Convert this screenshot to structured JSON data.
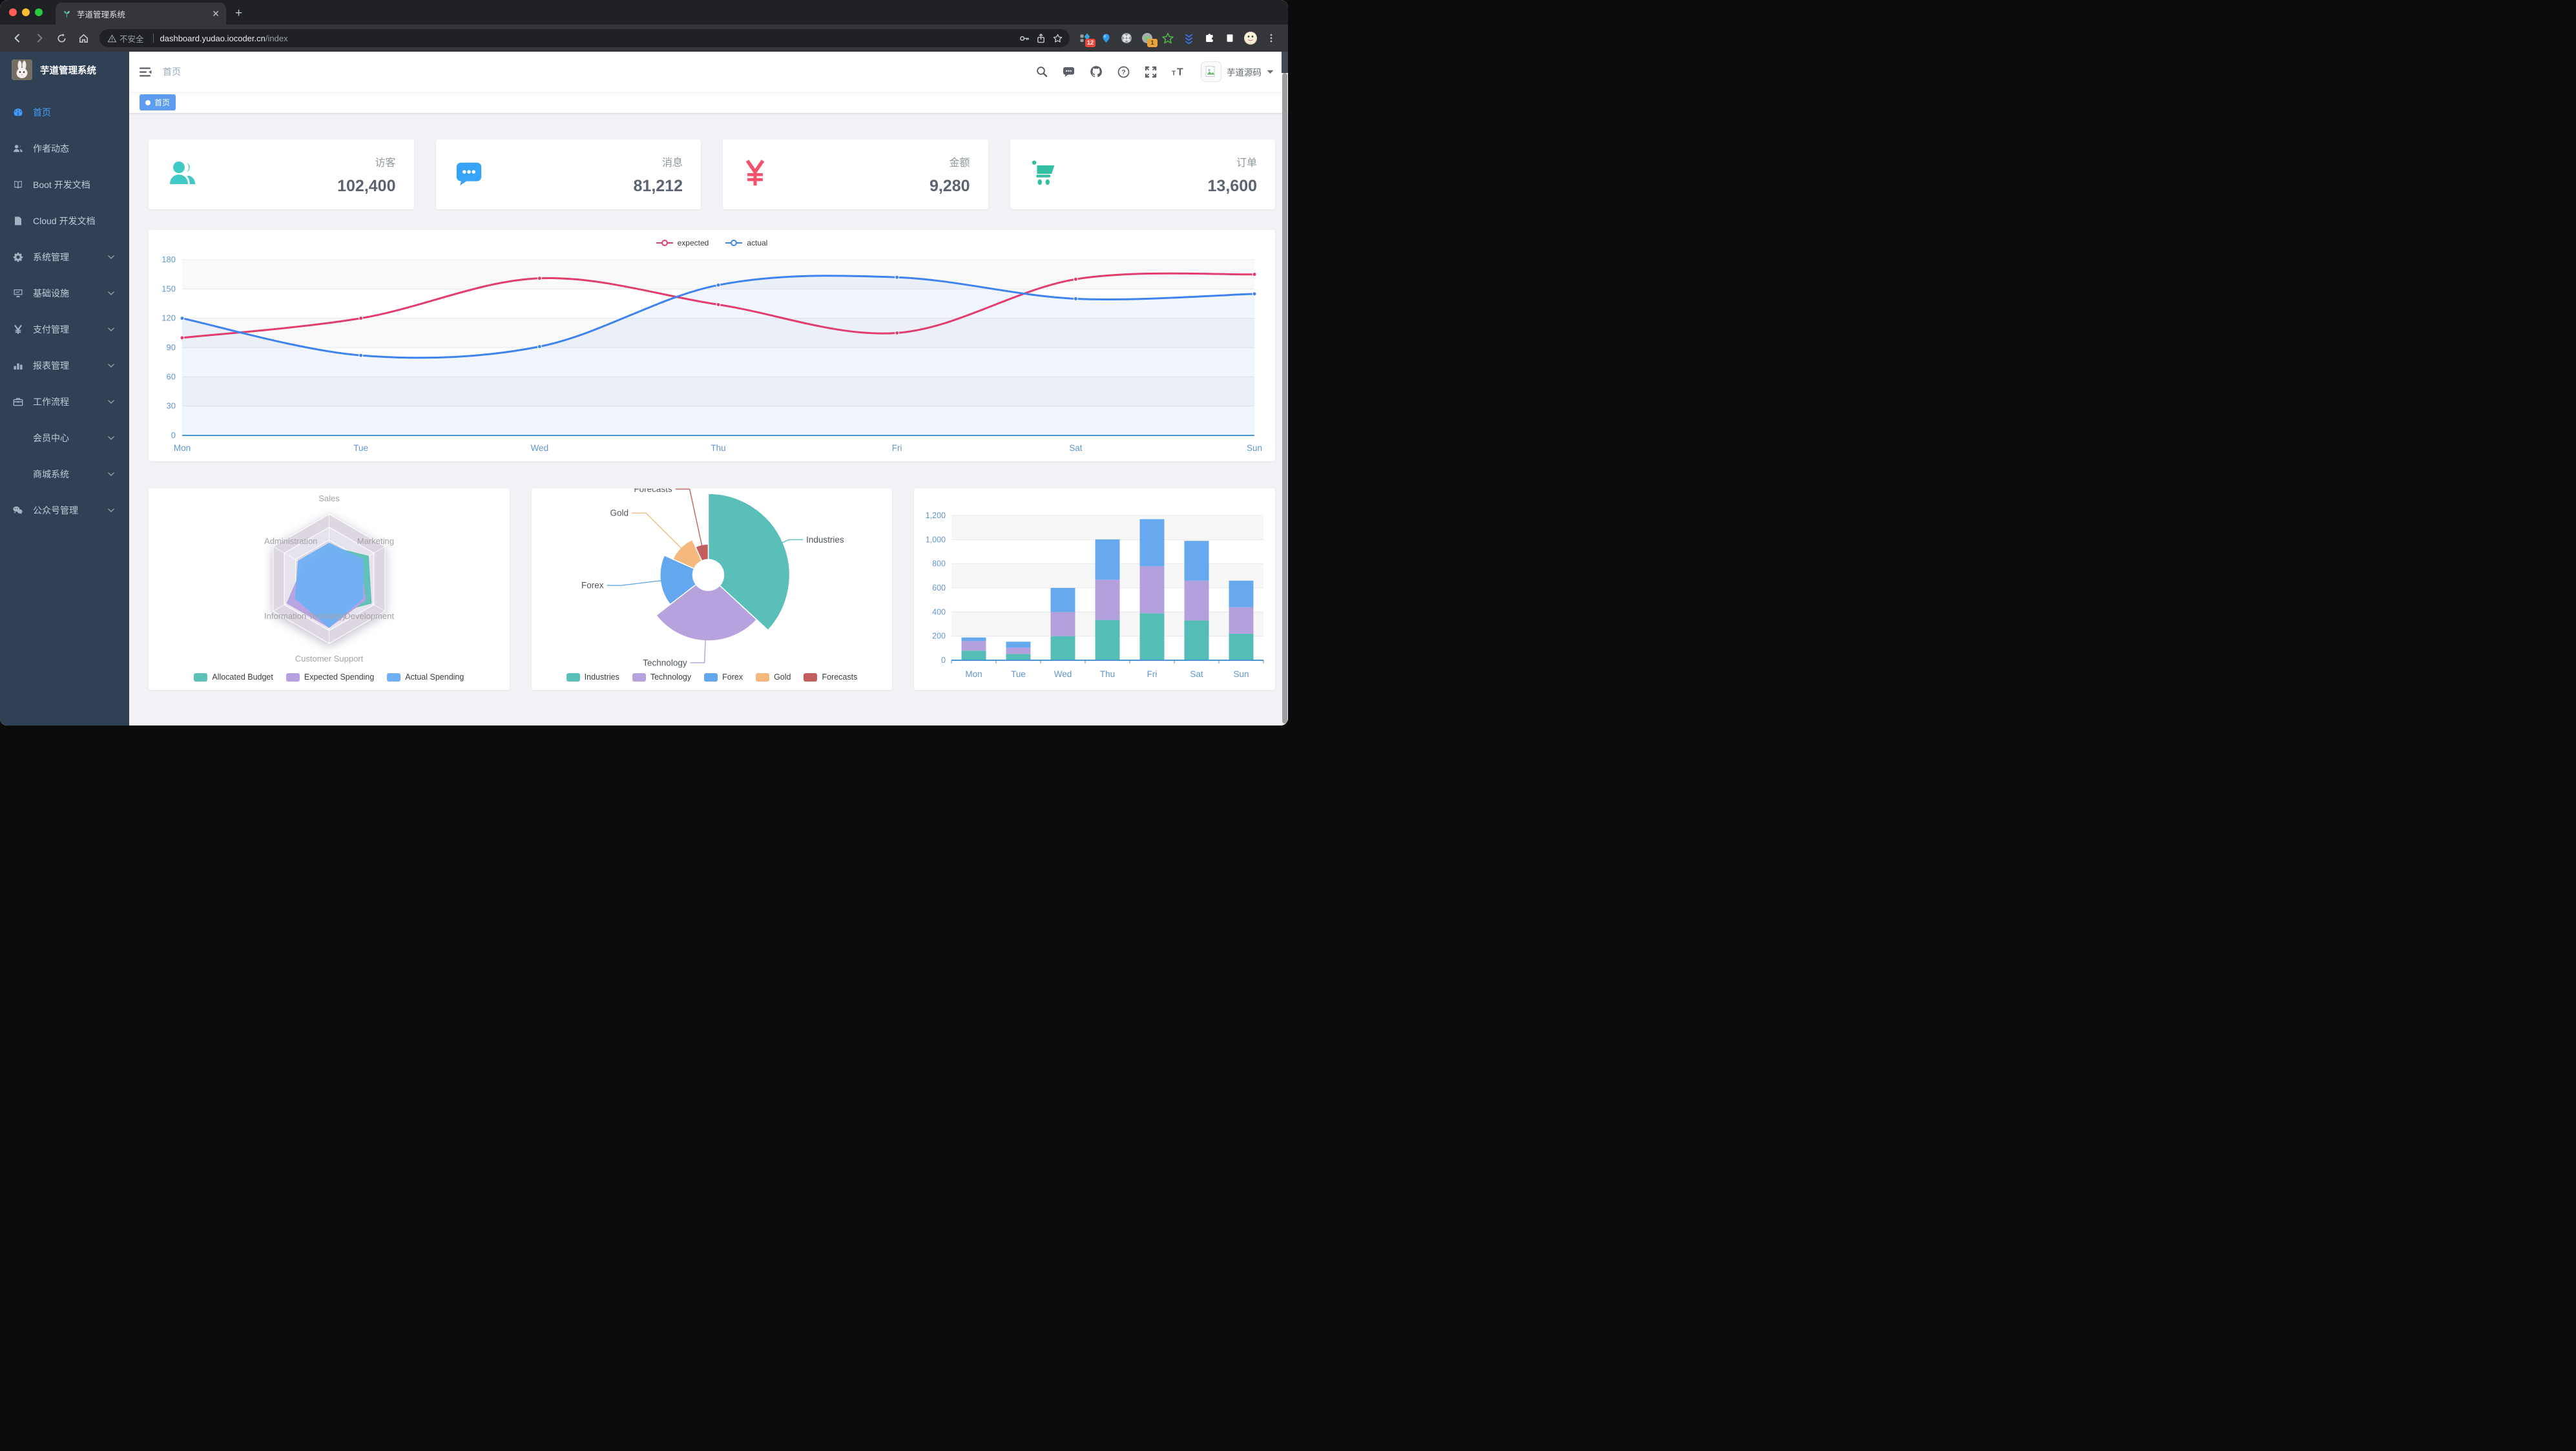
{
  "browser": {
    "tab_title": "芋道管理系统",
    "security_label": "不安全",
    "url_host": "dashboard.yudao.iocoder.cn",
    "url_path": "/index",
    "ext_badges": [
      "12",
      "1"
    ]
  },
  "sidebar": {
    "logo_title": "芋道管理系统",
    "items": [
      {
        "label": "首页",
        "icon": "dashboard-icon",
        "active": true,
        "arrow": false
      },
      {
        "label": "作者动态",
        "icon": "people-icon",
        "active": false,
        "arrow": false
      },
      {
        "label": "Boot 开发文档",
        "icon": "book-icon",
        "active": false,
        "arrow": false
      },
      {
        "label": "Cloud 开发文档",
        "icon": "document-icon",
        "active": false,
        "arrow": false
      },
      {
        "label": "系统管理",
        "icon": "gear-icon",
        "active": false,
        "arrow": true
      },
      {
        "label": "基础设施",
        "icon": "monitor-icon",
        "active": false,
        "arrow": true
      },
      {
        "label": "支付管理",
        "icon": "yen-icon",
        "active": false,
        "arrow": true
      },
      {
        "label": "报表管理",
        "icon": "chart-bar-icon",
        "active": false,
        "arrow": true
      },
      {
        "label": "工作流程",
        "icon": "briefcase-icon",
        "active": false,
        "arrow": true
      },
      {
        "label": "会员中心",
        "icon": null,
        "active": false,
        "arrow": true
      },
      {
        "label": "商城系统",
        "icon": null,
        "active": false,
        "arrow": true
      },
      {
        "label": "公众号管理",
        "icon": "wechat-icon",
        "active": false,
        "arrow": true
      }
    ]
  },
  "navbar": {
    "breadcrumb": "首页",
    "user_name": "芋道源码"
  },
  "tags_view": {
    "active_tag": "首页"
  },
  "stats": [
    {
      "label": "访客",
      "value": "102,400",
      "icon": "peoples-icon",
      "color": "#40c9c6"
    },
    {
      "label": "消息",
      "value": "81,212",
      "icon": "message-icon",
      "color": "#36a3f7"
    },
    {
      "label": "金额",
      "value": "9,280",
      "icon": "money-icon",
      "color": "#f4516c"
    },
    {
      "label": "订单",
      "value": "13,600",
      "icon": "cart-icon",
      "color": "#34bfa3"
    }
  ],
  "chart_data": [
    {
      "id": "weekly-line",
      "type": "line",
      "x": [
        "Mon",
        "Tue",
        "Wed",
        "Thu",
        "Fri",
        "Sat",
        "Sun"
      ],
      "series": [
        {
          "name": "expected",
          "color": "#e23d6d",
          "values": [
            100,
            120,
            161,
            134,
            105,
            160,
            165
          ],
          "area": false
        },
        {
          "name": "actual",
          "color": "#3f83f0",
          "values": [
            120,
            82,
            91,
            154,
            162,
            140,
            145
          ],
          "area": true
        }
      ],
      "ylim": [
        0,
        180
      ],
      "ytick_step": 30,
      "legend_position": "top",
      "grid": true
    },
    {
      "id": "budget-radar",
      "type": "radar",
      "indicators": [
        {
          "name": "Sales",
          "max": 10000
        },
        {
          "name": "Administration",
          "max": 20000
        },
        {
          "name": "Information Techology",
          "max": 20000
        },
        {
          "name": "Customer Support",
          "max": 20000
        },
        {
          "name": "Development",
          "max": 20000
        },
        {
          "name": "Marketing",
          "max": 20000
        }
      ],
      "series": [
        {
          "name": "Allocated Budget",
          "color": "#5ec0b8",
          "values": [
            5000,
            7000,
            12000,
            11000,
            15000,
            14000
          ]
        },
        {
          "name": "Expected Spending",
          "color": "#b5a1e0",
          "values": [
            4000,
            9000,
            15000,
            15000,
            13000,
            11000
          ]
        },
        {
          "name": "Actual Spending",
          "color": "#6fb0f4",
          "values": [
            5500,
            11000,
            12000,
            15000,
            12000,
            12000
          ]
        }
      ],
      "legend_position": "bottom"
    },
    {
      "id": "category-pie",
      "type": "pie",
      "rose": true,
      "slices": [
        {
          "name": "Industries",
          "value": 320,
          "color": "#5abfb9"
        },
        {
          "name": "Technology",
          "value": 240,
          "color": "#b6a3de"
        },
        {
          "name": "Forex",
          "value": 149,
          "color": "#63a7ee"
        },
        {
          "name": "Gold",
          "value": 100,
          "color": "#f5b97d"
        },
        {
          "name": "Forecasts",
          "value": 59,
          "color": "#c25e5e"
        }
      ],
      "legend_position": "bottom"
    },
    {
      "id": "weekly-bar",
      "type": "bar",
      "stacked": true,
      "categories": [
        "Mon",
        "Tue",
        "Wed",
        "Thu",
        "Fri",
        "Sat",
        "Sun"
      ],
      "series": [
        {
          "color": "#53bdb6",
          "values": [
            79,
            52,
            200,
            334,
            390,
            330,
            220
          ]
        },
        {
          "color": "#b3a0dd",
          "values": [
            80,
            52,
            200,
            334,
            390,
            330,
            220
          ]
        },
        {
          "color": "#66a9ee",
          "values": [
            30,
            50,
            200,
            334,
            390,
            330,
            220
          ]
        }
      ],
      "ylim": [
        0,
        1200
      ],
      "ytick_step": 200
    }
  ]
}
